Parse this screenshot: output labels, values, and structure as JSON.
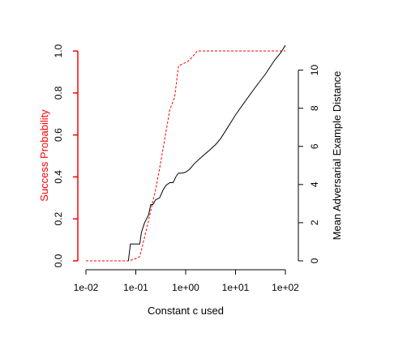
{
  "chart_data": {
    "type": "line",
    "xlabel": "Constant c used",
    "ylabel_left": "Success Probability",
    "ylabel_right": "Mean Adversarial Example Distance",
    "x_scale": "log",
    "xlim": [
      0.01,
      100
    ],
    "ylim_left": [
      0,
      1
    ],
    "ylim_right": [
      0,
      11
    ],
    "colors": {
      "left_axis": "#ff0000",
      "success": "#ff0000",
      "distance": "#000000",
      "right_axis": "#000000"
    },
    "x_ticks": [
      {
        "value": 0.01,
        "label": "1e-02"
      },
      {
        "value": 0.1,
        "label": "1e-01"
      },
      {
        "value": 1,
        "label": "1e+00"
      },
      {
        "value": 10,
        "label": "1e+01"
      },
      {
        "value": 100,
        "label": "1e+02"
      }
    ],
    "y_left_ticks": [
      {
        "value": 0,
        "label": "0.0"
      },
      {
        "value": 0.2,
        "label": "0.2"
      },
      {
        "value": 0.4,
        "label": "0.4"
      },
      {
        "value": 0.6,
        "label": "0.6"
      },
      {
        "value": 0.8,
        "label": "0.8"
      },
      {
        "value": 1.0,
        "label": "1.0"
      }
    ],
    "y_right_ticks": [
      {
        "value": 0,
        "label": "0"
      },
      {
        "value": 2,
        "label": "2"
      },
      {
        "value": 4,
        "label": "4"
      },
      {
        "value": 6,
        "label": "6"
      },
      {
        "value": 8,
        "label": "8"
      },
      {
        "value": 10,
        "label": "10"
      }
    ],
    "series": [
      {
        "axis": "left",
        "style": "dashed",
        "x": [
          0.01,
          0.028,
          0.071,
          0.1,
          0.12,
          0.16,
          0.2,
          0.25,
          0.3,
          0.38,
          0.48,
          0.6,
          0.72,
          0.9,
          1.1,
          1.35,
          1.7,
          2.5,
          5,
          10,
          30,
          100
        ],
        "values": [
          0,
          0,
          0,
          0.01,
          0.02,
          0.14,
          0.24,
          0.34,
          0.44,
          0.58,
          0.72,
          0.78,
          0.93,
          0.94,
          0.95,
          0.97,
          1.0,
          1.0,
          1.0,
          1.0,
          1.0,
          1.0
        ]
      },
      {
        "axis": "right",
        "style": "solid",
        "x": [
          0.071,
          0.078,
          0.1,
          0.12,
          0.13,
          0.15,
          0.18,
          0.2,
          0.22,
          0.25,
          0.3,
          0.35,
          0.4,
          0.48,
          0.56,
          0.65,
          0.72,
          0.85,
          1.0,
          1.2,
          1.5,
          2.0,
          3.0,
          4.0,
          5.0,
          7.0,
          10,
          15,
          25,
          40,
          60,
          80,
          100
        ],
        "values": [
          0.0,
          0.88,
          0.88,
          0.88,
          1.5,
          2.0,
          2.4,
          2.95,
          2.95,
          3.2,
          3.3,
          3.7,
          3.95,
          4.1,
          4.1,
          4.45,
          4.6,
          4.6,
          4.65,
          4.8,
          5.1,
          5.4,
          5.8,
          6.1,
          6.4,
          7.0,
          7.65,
          8.3,
          9.1,
          9.8,
          10.5,
          10.9,
          11.3
        ]
      }
    ]
  }
}
